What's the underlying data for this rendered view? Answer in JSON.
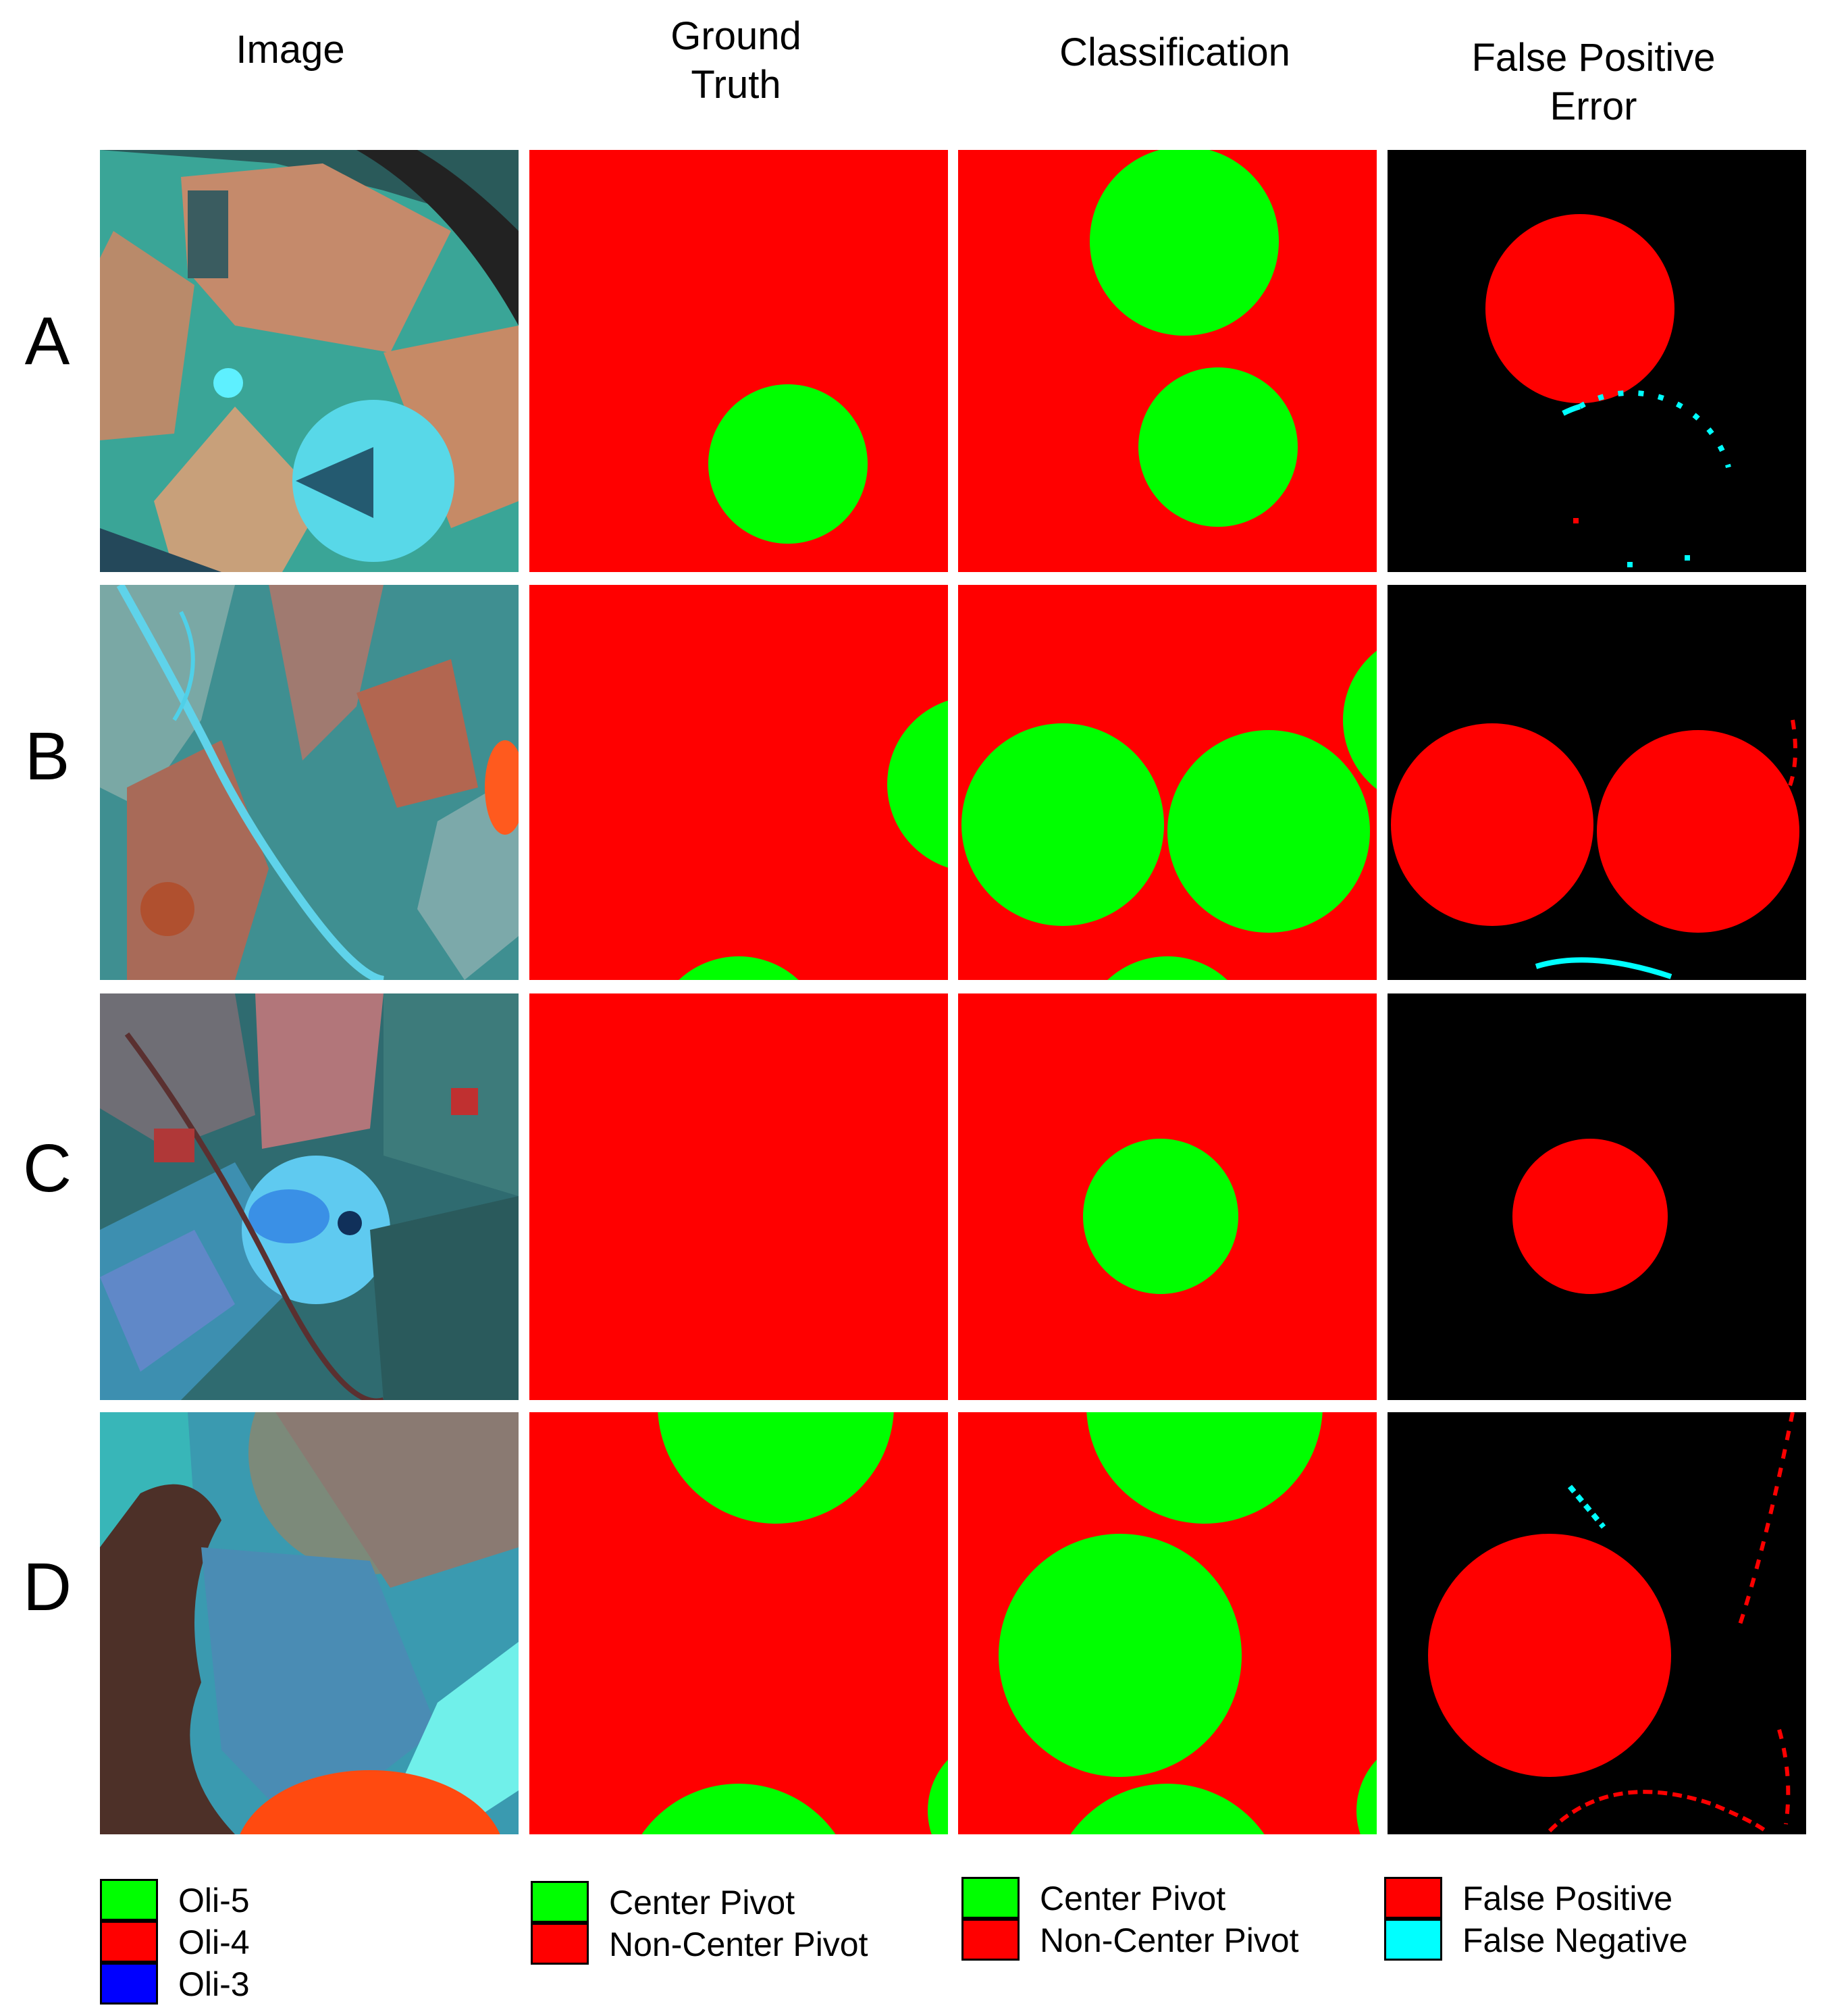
{
  "column_headers": [
    "Image",
    "Ground\nTruth",
    "Classification",
    "False Positive\nError"
  ],
  "row_labels": [
    "A",
    "B",
    "C",
    "D"
  ],
  "colors": {
    "center_pivot": "#00ff00",
    "non_center_pivot": "#ff0000",
    "false_positive": "#ff0000",
    "false_negative": "#00ffff",
    "background_error": "#000000",
    "oli_5": "#00ff00",
    "oli_4": "#ff0000",
    "oli_3": "#0000ff"
  },
  "legends": {
    "image": [
      {
        "label": "Oli-5",
        "color": "#00ff00"
      },
      {
        "label": "Oli-4",
        "color": "#ff0000"
      },
      {
        "label": "Oli-3",
        "color": "#0000ff"
      }
    ],
    "ground_truth": [
      {
        "label": "Center Pivot",
        "color": "#00ff00"
      },
      {
        "label": "Non-Center Pivot",
        "color": "#ff0000"
      }
    ],
    "classification": [
      {
        "label": "Center Pivot",
        "color": "#00ff00"
      },
      {
        "label": "Non-Center Pivot",
        "color": "#ff0000"
      }
    ],
    "error": [
      {
        "label": "False Positive",
        "color": "#ff0000"
      },
      {
        "label": "False Negative",
        "color": "#00ffff"
      }
    ]
  }
}
